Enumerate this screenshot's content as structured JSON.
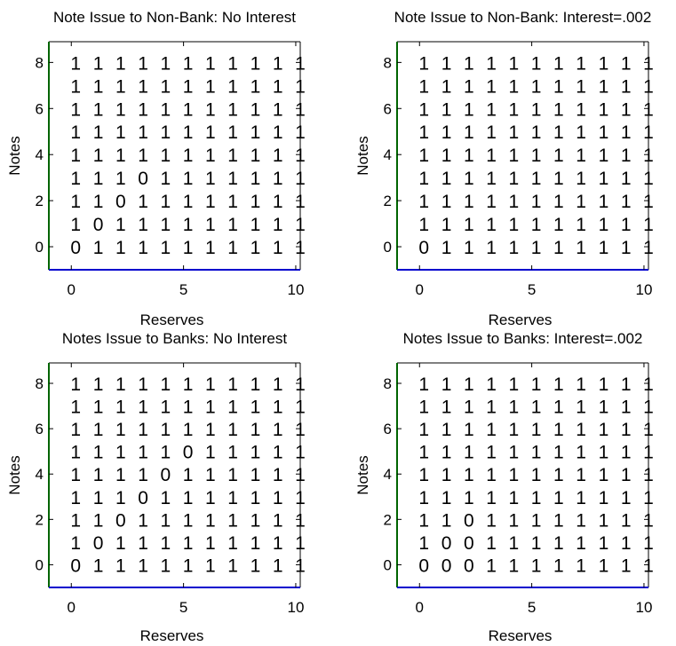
{
  "chart_data": [
    {
      "type": "table",
      "title": "Note Issue to Non-Bank: No Interest",
      "xlabel": "Reserves",
      "ylabel": "Notes",
      "xlim": [
        -1,
        10.2
      ],
      "ylim": [
        -1,
        8.9
      ],
      "x_ticks": [
        0,
        5,
        10
      ],
      "y_ticks": [
        0,
        2,
        4,
        6,
        8
      ],
      "x": [
        0,
        1,
        2,
        3,
        4,
        5,
        6,
        7,
        8,
        9,
        10
      ],
      "y": [
        0,
        1,
        2,
        3,
        4,
        5,
        6,
        7,
        8
      ],
      "values": [
        [
          0,
          1,
          1,
          1,
          1,
          1,
          1,
          1,
          1,
          1,
          1
        ],
        [
          1,
          0,
          1,
          1,
          1,
          1,
          1,
          1,
          1,
          1,
          1
        ],
        [
          1,
          1,
          0,
          1,
          1,
          1,
          1,
          1,
          1,
          1,
          1
        ],
        [
          1,
          1,
          1,
          0,
          1,
          1,
          1,
          1,
          1,
          1,
          1
        ],
        [
          1,
          1,
          1,
          1,
          1,
          1,
          1,
          1,
          1,
          1,
          1
        ],
        [
          1,
          1,
          1,
          1,
          1,
          1,
          1,
          1,
          1,
          1,
          1
        ],
        [
          1,
          1,
          1,
          1,
          1,
          1,
          1,
          1,
          1,
          1,
          1
        ],
        [
          1,
          1,
          1,
          1,
          1,
          1,
          1,
          1,
          1,
          1,
          1
        ],
        [
          1,
          1,
          1,
          1,
          1,
          1,
          1,
          1,
          1,
          1,
          1
        ]
      ]
    },
    {
      "type": "table",
      "title": "Note Issue to Non-Bank: Interest=.002",
      "xlabel": "Reserves",
      "ylabel": "Notes",
      "xlim": [
        -1,
        10.2
      ],
      "ylim": [
        -1,
        8.9
      ],
      "x_ticks": [
        0,
        5,
        10
      ],
      "y_ticks": [
        0,
        2,
        4,
        6,
        8
      ],
      "x": [
        0,
        1,
        2,
        3,
        4,
        5,
        6,
        7,
        8,
        9,
        10
      ],
      "y": [
        0,
        1,
        2,
        3,
        4,
        5,
        6,
        7,
        8
      ],
      "values": [
        [
          0,
          1,
          1,
          1,
          1,
          1,
          1,
          1,
          1,
          1,
          1
        ],
        [
          1,
          1,
          1,
          1,
          1,
          1,
          1,
          1,
          1,
          1,
          1
        ],
        [
          1,
          1,
          1,
          1,
          1,
          1,
          1,
          1,
          1,
          1,
          1
        ],
        [
          1,
          1,
          1,
          1,
          1,
          1,
          1,
          1,
          1,
          1,
          1
        ],
        [
          1,
          1,
          1,
          1,
          1,
          1,
          1,
          1,
          1,
          1,
          1
        ],
        [
          1,
          1,
          1,
          1,
          1,
          1,
          1,
          1,
          1,
          1,
          1
        ],
        [
          1,
          1,
          1,
          1,
          1,
          1,
          1,
          1,
          1,
          1,
          1
        ],
        [
          1,
          1,
          1,
          1,
          1,
          1,
          1,
          1,
          1,
          1,
          1
        ],
        [
          1,
          1,
          1,
          1,
          1,
          1,
          1,
          1,
          1,
          1,
          1
        ]
      ]
    },
    {
      "type": "table",
      "title": "Notes Issue to Banks: No Interest",
      "xlabel": "Reserves",
      "ylabel": "Notes",
      "xlim": [
        -1,
        10.2
      ],
      "ylim": [
        -1,
        8.9
      ],
      "x_ticks": [
        0,
        5,
        10
      ],
      "y_ticks": [
        0,
        2,
        4,
        6,
        8
      ],
      "x": [
        0,
        1,
        2,
        3,
        4,
        5,
        6,
        7,
        8,
        9,
        10
      ],
      "y": [
        0,
        1,
        2,
        3,
        4,
        5,
        6,
        7,
        8
      ],
      "values": [
        [
          0,
          1,
          1,
          1,
          1,
          1,
          1,
          1,
          1,
          1,
          1
        ],
        [
          1,
          0,
          1,
          1,
          1,
          1,
          1,
          1,
          1,
          1,
          1
        ],
        [
          1,
          1,
          0,
          1,
          1,
          1,
          1,
          1,
          1,
          1,
          1
        ],
        [
          1,
          1,
          1,
          0,
          1,
          1,
          1,
          1,
          1,
          1,
          1
        ],
        [
          1,
          1,
          1,
          1,
          0,
          1,
          1,
          1,
          1,
          1,
          1
        ],
        [
          1,
          1,
          1,
          1,
          1,
          0,
          1,
          1,
          1,
          1,
          1
        ],
        [
          1,
          1,
          1,
          1,
          1,
          1,
          1,
          1,
          1,
          1,
          1
        ],
        [
          1,
          1,
          1,
          1,
          1,
          1,
          1,
          1,
          1,
          1,
          1
        ],
        [
          1,
          1,
          1,
          1,
          1,
          1,
          1,
          1,
          1,
          1,
          1
        ]
      ]
    },
    {
      "type": "table",
      "title": "Notes Issue to Banks: Interest=.002",
      "xlabel": "Reserves",
      "ylabel": "Notes",
      "xlim": [
        -1,
        10.2
      ],
      "ylim": [
        -1,
        8.9
      ],
      "x_ticks": [
        0,
        5,
        10
      ],
      "y_ticks": [
        0,
        2,
        4,
        6,
        8
      ],
      "x": [
        0,
        1,
        2,
        3,
        4,
        5,
        6,
        7,
        8,
        9,
        10
      ],
      "y": [
        0,
        1,
        2,
        3,
        4,
        5,
        6,
        7,
        8
      ],
      "values": [
        [
          0,
          0,
          0,
          1,
          1,
          1,
          1,
          1,
          1,
          1,
          1
        ],
        [
          1,
          0,
          0,
          1,
          1,
          1,
          1,
          1,
          1,
          1,
          1
        ],
        [
          1,
          1,
          0,
          1,
          1,
          1,
          1,
          1,
          1,
          1,
          1
        ],
        [
          1,
          1,
          1,
          1,
          1,
          1,
          1,
          1,
          1,
          1,
          1
        ],
        [
          1,
          1,
          1,
          1,
          1,
          1,
          1,
          1,
          1,
          1,
          1
        ],
        [
          1,
          1,
          1,
          1,
          1,
          1,
          1,
          1,
          1,
          1,
          1
        ],
        [
          1,
          1,
          1,
          1,
          1,
          1,
          1,
          1,
          1,
          1,
          1
        ],
        [
          1,
          1,
          1,
          1,
          1,
          1,
          1,
          1,
          1,
          1,
          1
        ],
        [
          1,
          1,
          1,
          1,
          1,
          1,
          1,
          1,
          1,
          1,
          1
        ]
      ]
    }
  ],
  "colors": {
    "left_axis": "#006400",
    "bottom_axis": "#0000cd",
    "frame": "#000000",
    "text": "#000000"
  }
}
